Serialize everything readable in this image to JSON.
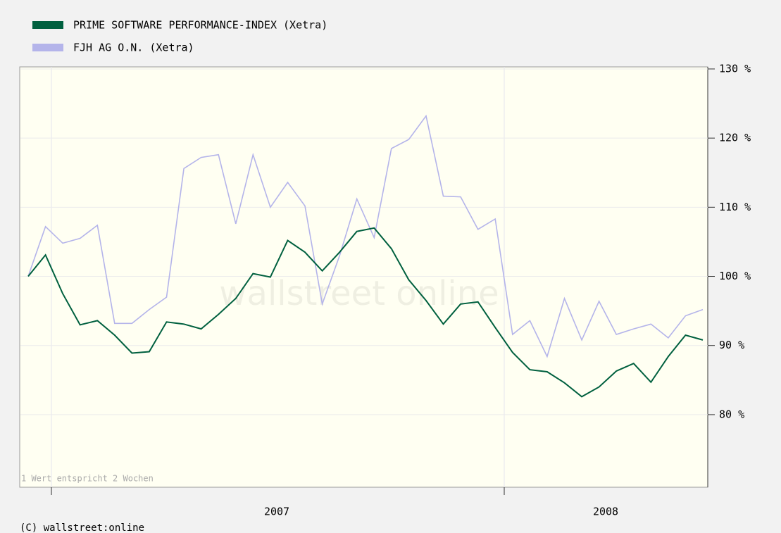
{
  "chart_data": {
    "type": "line",
    "series": [
      {
        "name": "PRIME SOFTWARE PERFORMANCE-INDEX (Xetra)",
        "color": "#00603f",
        "values": [
          100,
          103.1,
          97.5,
          93,
          93.6,
          91.5,
          88.9,
          89.1,
          93.4,
          93.1,
          92.4,
          94.5,
          96.8,
          100.4,
          99.9,
          105.2,
          103.5,
          100.8,
          103.5,
          106.5,
          107,
          104,
          99.5,
          96.5,
          93.1,
          96,
          96.3,
          92.6,
          89,
          86.5,
          86.2,
          84.6,
          82.6,
          84,
          86.3,
          87.4,
          84.7,
          88.4,
          91.5,
          90.8
        ]
      },
      {
        "name": "FJH AG O.N. (Xetra)",
        "color": "#b4b4ea",
        "values": [
          100,
          107.2,
          104.8,
          105.5,
          107.4,
          93.2,
          93.2,
          95.2,
          97,
          115.6,
          117.2,
          117.6,
          107.6,
          117.6,
          110,
          113.6,
          110.2,
          96,
          103,
          111.2,
          105.6,
          118.5,
          119.8,
          123.2,
          111.6,
          111.5,
          106.8,
          108.3,
          91.6,
          93.6,
          88.4,
          96.8,
          90.8,
          96.4,
          91.6,
          92.4,
          93.1,
          91.1,
          94.3,
          95.2
        ]
      }
    ],
    "xlabels": [
      "2007",
      "2008"
    ],
    "ylim": [
      69.5,
      130.3
    ],
    "yticks": [
      {
        "value": 80,
        "label": "80 %"
      },
      {
        "value": 90,
        "label": "90 %"
      },
      {
        "value": 100,
        "label": "100 %"
      },
      {
        "value": 110,
        "label": "110 %"
      },
      {
        "value": 120,
        "label": "120 %"
      },
      {
        "value": 130,
        "label": "130 %"
      }
    ],
    "grid": true,
    "note": "1 Wert entspricht 2 Wochen",
    "watermark": "wallstreet online",
    "copyright": "(C) wallstreet:online"
  }
}
